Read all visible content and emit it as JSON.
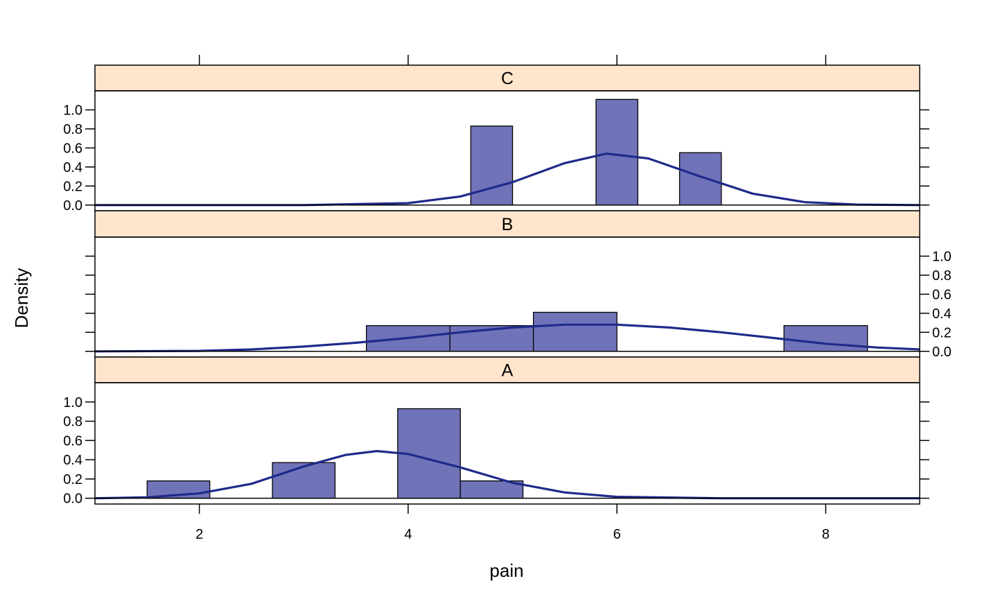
{
  "colors": {
    "bar_fill": "#7073b8",
    "curve": "#1f2a8a",
    "strip": "#ffe5cc"
  },
  "chart_data": {
    "type": "histogram",
    "xlabel": "pain",
    "ylabel": "Density",
    "xlim": [
      1.0,
      8.9
    ],
    "ylim": [
      -0.06,
      1.2
    ],
    "x_ticks": [
      2,
      4,
      6,
      8
    ],
    "y_ticks": [
      0.0,
      0.2,
      0.4,
      0.6,
      0.8,
      1.0
    ],
    "y_tick_labels": [
      "0.0",
      "0.2",
      "0.4",
      "0.6",
      "0.8",
      "1.0"
    ],
    "panels": [
      {
        "label": "C",
        "bars": [
          {
            "x0": 4.6,
            "x1": 5.0,
            "density": 0.83
          },
          {
            "x0": 5.8,
            "x1": 6.2,
            "density": 1.11
          },
          {
            "x0": 6.6,
            "x1": 7.0,
            "density": 0.55
          }
        ],
        "density_curve": [
          [
            1.0,
            0.0
          ],
          [
            3.0,
            0.0
          ],
          [
            4.0,
            0.02
          ],
          [
            4.5,
            0.09
          ],
          [
            5.0,
            0.24
          ],
          [
            5.5,
            0.44
          ],
          [
            5.9,
            0.54
          ],
          [
            6.3,
            0.49
          ],
          [
            6.8,
            0.3
          ],
          [
            7.3,
            0.12
          ],
          [
            7.8,
            0.03
          ],
          [
            8.3,
            0.005
          ],
          [
            8.9,
            0.0
          ]
        ]
      },
      {
        "label": "B",
        "bars": [
          {
            "x0": 3.6,
            "x1": 4.4,
            "density": 0.27
          },
          {
            "x0": 4.4,
            "x1": 5.2,
            "density": 0.27
          },
          {
            "x0": 5.2,
            "x1": 6.0,
            "density": 0.41
          },
          {
            "x0": 7.6,
            "x1": 8.4,
            "density": 0.27
          }
        ],
        "density_curve": [
          [
            1.0,
            0.0
          ],
          [
            2.0,
            0.005
          ],
          [
            2.5,
            0.02
          ],
          [
            3.0,
            0.05
          ],
          [
            3.5,
            0.09
          ],
          [
            4.0,
            0.14
          ],
          [
            4.5,
            0.2
          ],
          [
            5.0,
            0.25
          ],
          [
            5.5,
            0.28
          ],
          [
            6.0,
            0.28
          ],
          [
            6.5,
            0.25
          ],
          [
            7.0,
            0.2
          ],
          [
            7.5,
            0.14
          ],
          [
            8.0,
            0.08
          ],
          [
            8.5,
            0.04
          ],
          [
            8.9,
            0.02
          ]
        ]
      },
      {
        "label": "A",
        "bars": [
          {
            "x0": 1.5,
            "x1": 2.1,
            "density": 0.18
          },
          {
            "x0": 2.7,
            "x1": 3.3,
            "density": 0.37
          },
          {
            "x0": 3.9,
            "x1": 4.5,
            "density": 0.93
          },
          {
            "x0": 4.5,
            "x1": 5.1,
            "density": 0.18
          }
        ],
        "density_curve": [
          [
            1.0,
            0.0
          ],
          [
            1.5,
            0.01
          ],
          [
            2.0,
            0.05
          ],
          [
            2.5,
            0.15
          ],
          [
            3.0,
            0.33
          ],
          [
            3.4,
            0.45
          ],
          [
            3.7,
            0.49
          ],
          [
            4.0,
            0.46
          ],
          [
            4.5,
            0.32
          ],
          [
            5.0,
            0.16
          ],
          [
            5.5,
            0.06
          ],
          [
            6.0,
            0.015
          ],
          [
            7.0,
            0.0
          ],
          [
            8.9,
            0.0
          ]
        ]
      }
    ]
  }
}
